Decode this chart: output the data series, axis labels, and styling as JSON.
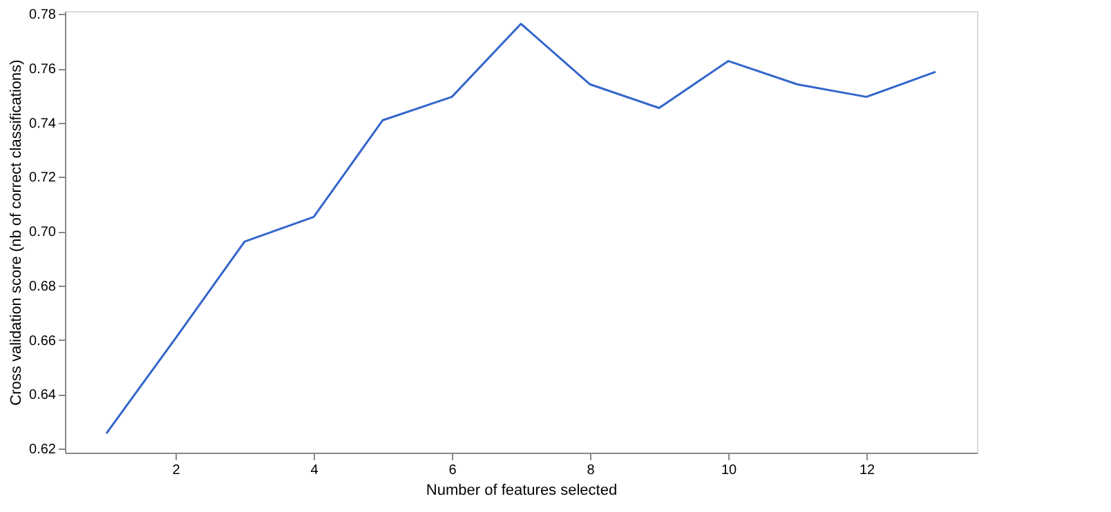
{
  "chart_data": {
    "type": "line",
    "xlabel": "Number of features selected",
    "ylabel": "Cross validation score (nb of correct classifications)",
    "x": [
      1,
      2,
      3,
      4,
      5,
      6,
      7,
      8,
      9,
      10,
      11,
      12,
      13
    ],
    "series": [
      {
        "color": "#3366cc",
        "values": [
          0.6256,
          0.6606,
          0.6962,
          0.7053,
          0.7409,
          0.7495,
          0.7764,
          0.7541,
          0.7454,
          0.7627,
          0.7541,
          0.7495,
          0.7587
        ]
      }
    ],
    "xlim": [
      0.4,
      13.6
    ],
    "ylim": [
      0.6185,
      0.7811
    ],
    "xticks": [
      2,
      4,
      6,
      8,
      10,
      12
    ],
    "yticks": [
      0.62,
      0.64,
      0.66,
      0.68,
      {
        "value": 0.7,
        "label": "0.70"
      },
      0.72,
      0.74,
      0.76,
      0.78
    ],
    "grid": false,
    "marker": "none",
    "line_style": "solid"
  }
}
